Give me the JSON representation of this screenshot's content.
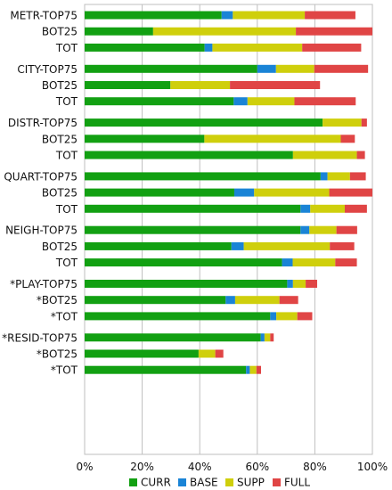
{
  "chart_data": {
    "type": "bar",
    "orientation": "horizontal",
    "stacked": true,
    "xlim": [
      0,
      100
    ],
    "x_ticks": [
      "0%",
      "20%",
      "40%",
      "60%",
      "80%",
      "100%"
    ],
    "grid": true,
    "legend_placement": "bottom",
    "categories": [
      "METR-TOP75",
      "BOT25",
      "TOT",
      "CITY-TOP75",
      "BOT25",
      "TOT",
      "DISTR-TOP75",
      "BOT25",
      "TOT",
      "QUART-TOP75",
      "BOT25",
      "TOT",
      "NEIGH-TOP75",
      "BOT25",
      "TOT",
      "*PLAY-TOP75",
      "*BOT25",
      "*TOT",
      "*RESID-TOP75",
      "*BOT25",
      "*TOT"
    ],
    "series": [
      {
        "name": "CURR",
        "color": "#12a012",
        "values": [
          47.6,
          23.8,
          41.7,
          60.0,
          29.8,
          51.8,
          82.7,
          41.6,
          72.4,
          82.0,
          52.0,
          75.0,
          75.0,
          51.0,
          68.6,
          70.4,
          49.0,
          64.5,
          61.2,
          39.6,
          56.1
        ]
      },
      {
        "name": "BASE",
        "color": "#1a84d6",
        "values": [
          3.9,
          0,
          2.7,
          6.5,
          0,
          4.8,
          0,
          0,
          0,
          2.4,
          6.9,
          3.4,
          3.1,
          4.3,
          3.7,
          2.0,
          3.3,
          2.1,
          1.3,
          0,
          1.3
        ]
      },
      {
        "name": "SUPP",
        "color": "#cfcf0c",
        "values": [
          25.0,
          49.6,
          31.2,
          13.3,
          20.7,
          16.3,
          13.5,
          47.4,
          22.2,
          7.8,
          26.1,
          12.0,
          9.4,
          29.9,
          14.8,
          4.4,
          15.4,
          7.3,
          2.0,
          5.8,
          2.3
        ]
      },
      {
        "name": "FULL",
        "color": "#e04545",
        "values": [
          17.6,
          26.6,
          20.5,
          18.7,
          31.3,
          21.3,
          1.9,
          4.9,
          2.8,
          5.5,
          15.0,
          7.7,
          7.2,
          8.5,
          7.5,
          4.0,
          6.5,
          5.2,
          1.2,
          2.8,
          1.6
        ]
      }
    ]
  }
}
